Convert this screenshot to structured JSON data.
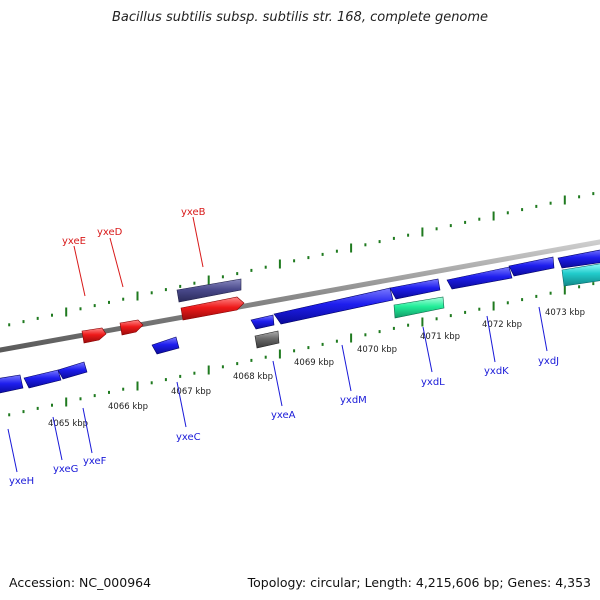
{
  "title": "Bacillus subtilis subsp. subtilis str. 168, complete genome",
  "footer": {
    "accession": "Accession: NC_000964",
    "topology": "Topology: circular; Length: 4,215,606 bp; Genes: 4,353"
  },
  "colors": {
    "backbone": "#8a8a8a",
    "tick": "#1f7a1f",
    "gene_forward_label": "#d81a1a",
    "gene_reverse_label": "#1a1ad8",
    "coding": "#1a1aee",
    "rna": "#ee1a1a",
    "pseudo": "#4a4a8c",
    "other": "#6a6a6a",
    "aqua_green": "#22ee99",
    "cyan": "#22cccc"
  },
  "ruler": {
    "unit": "kbp",
    "labels": [
      "4065 kbp",
      "4066 kbp",
      "4067 kbp",
      "4068 kbp",
      "4069 kbp",
      "4070 kbp",
      "4071 kbp",
      "4072 kbp",
      "4073 kbp"
    ]
  },
  "gene_labels_forward": [
    {
      "name": "yxeE"
    },
    {
      "name": "yxeD"
    },
    {
      "name": "yxeB"
    }
  ],
  "gene_labels_reverse": [
    {
      "name": "yxeH"
    },
    {
      "name": "yxeG"
    },
    {
      "name": "yxeF"
    },
    {
      "name": "yxeC"
    },
    {
      "name": "yxeA"
    },
    {
      "name": "yxdM"
    },
    {
      "name": "yxdL"
    },
    {
      "name": "yxdK"
    },
    {
      "name": "yxdJ"
    }
  ]
}
